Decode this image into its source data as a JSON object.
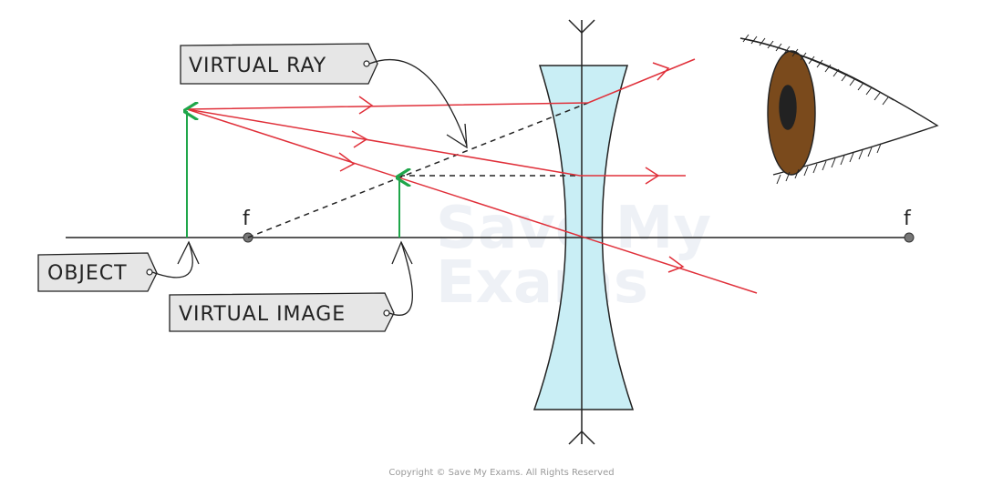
{
  "labels": {
    "virtual_ray": "VIRTUAL RAY",
    "object": "OBJECT",
    "virtual_image": "VIRTUAL IMAGE",
    "focal_left": "f",
    "focal_right": "f"
  },
  "watermark": {
    "line1": "Save My",
    "line2": "Exams"
  },
  "copyright": "Copyright © Save My Exams. All Rights Reserved",
  "colors": {
    "ray": "#e0303a",
    "object_arrow": "#1fa64a",
    "lens_fill": "#c9eef5",
    "axis": "#222222",
    "tag_fill": "#e6e6e6",
    "iris": "#7a4a1c"
  }
}
